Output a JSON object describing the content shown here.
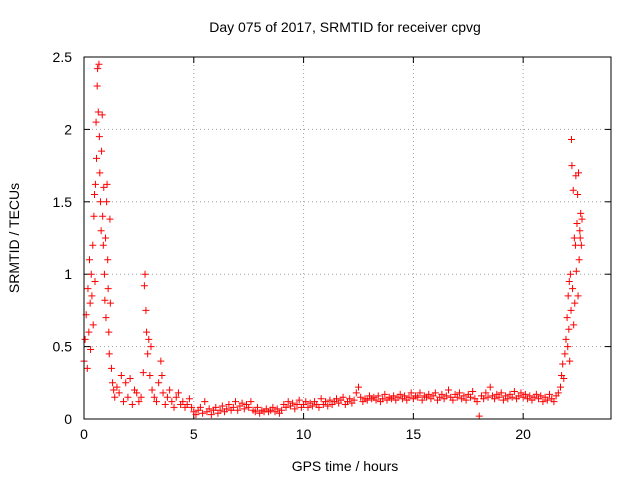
{
  "chart_data": {
    "type": "scatter",
    "title": "Day 075 of 2017, SRMTID for receiver cpvg",
    "xlabel": "GPS time / hours",
    "ylabel": "SRMTID / TECUs",
    "xlim": [
      0,
      24
    ],
    "ylim": [
      0,
      2.5
    ],
    "grid": true,
    "marker": "+",
    "series_color": "#ff0000",
    "x_ticks": [
      0,
      5,
      10,
      15,
      20
    ],
    "x_tick_labels": [
      "0",
      "5",
      "10",
      "15",
      "20"
    ],
    "y_ticks": [
      0,
      0.5,
      1,
      1.5,
      2,
      2.5
    ],
    "y_tick_labels": [
      "0",
      "0.5",
      "1",
      "1.5",
      "2",
      "2.5"
    ],
    "series": [
      {
        "name": "SRMTID",
        "points": [
          [
            0.0,
            0.4
          ],
          [
            0.05,
            0.55
          ],
          [
            0.1,
            0.72
          ],
          [
            0.15,
            0.35
          ],
          [
            0.18,
            0.9
          ],
          [
            0.22,
            0.6
          ],
          [
            0.25,
            1.1
          ],
          [
            0.28,
            0.8
          ],
          [
            0.3,
            0.48
          ],
          [
            0.33,
            1.0
          ],
          [
            0.36,
            0.85
          ],
          [
            0.4,
            1.2
          ],
          [
            0.42,
            0.65
          ],
          [
            0.45,
            1.4
          ],
          [
            0.48,
            1.55
          ],
          [
            0.5,
            0.95
          ],
          [
            0.52,
            1.62
          ],
          [
            0.55,
            2.05
          ],
          [
            0.57,
            1.8
          ],
          [
            0.6,
            2.3
          ],
          [
            0.62,
            2.42
          ],
          [
            0.65,
            2.12
          ],
          [
            0.68,
            2.45
          ],
          [
            0.7,
            1.95
          ],
          [
            0.72,
            1.7
          ],
          [
            0.75,
            1.5
          ],
          [
            0.78,
            1.3
          ],
          [
            0.8,
            1.85
          ],
          [
            0.83,
            2.1
          ],
          [
            0.85,
            1.4
          ],
          [
            0.88,
            1.2
          ],
          [
            0.9,
            1.6
          ],
          [
            0.93,
            1.0
          ],
          [
            0.95,
            0.82
          ],
          [
            0.98,
            1.25
          ],
          [
            1.0,
            0.7
          ],
          [
            1.03,
            1.5
          ],
          [
            1.05,
            1.62
          ],
          [
            1.08,
            1.1
          ],
          [
            1.1,
            0.9
          ],
          [
            1.13,
            0.6
          ],
          [
            1.15,
            0.45
          ],
          [
            1.18,
            1.38
          ],
          [
            1.2,
            0.8
          ],
          [
            1.25,
            0.35
          ],
          [
            1.3,
            0.25
          ],
          [
            1.35,
            0.2
          ],
          [
            1.4,
            0.15
          ],
          [
            1.5,
            0.22
          ],
          [
            1.6,
            0.18
          ],
          [
            1.7,
            0.3
          ],
          [
            1.8,
            0.12
          ],
          [
            1.9,
            0.25
          ],
          [
            2.0,
            0.15
          ],
          [
            2.1,
            0.28
          ],
          [
            2.2,
            0.1
          ],
          [
            2.3,
            0.2
          ],
          [
            2.4,
            0.18
          ],
          [
            2.5,
            0.12
          ],
          [
            2.6,
            0.15
          ],
          [
            2.7,
            0.32
          ],
          [
            2.75,
            0.92
          ],
          [
            2.78,
            1.0
          ],
          [
            2.82,
            0.75
          ],
          [
            2.85,
            0.6
          ],
          [
            2.9,
            0.45
          ],
          [
            2.95,
            0.55
          ],
          [
            3.0,
            0.3
          ],
          [
            3.05,
            0.5
          ],
          [
            3.1,
            0.2
          ],
          [
            3.2,
            0.15
          ],
          [
            3.3,
            0.12
          ],
          [
            3.4,
            0.25
          ],
          [
            3.5,
            0.4
          ],
          [
            3.55,
            0.3
          ],
          [
            3.6,
            0.18
          ],
          [
            3.7,
            0.1
          ],
          [
            3.8,
            0.15
          ],
          [
            3.9,
            0.2
          ],
          [
            4.0,
            0.12
          ],
          [
            4.1,
            0.08
          ],
          [
            4.2,
            0.15
          ],
          [
            4.3,
            0.18
          ],
          [
            4.4,
            0.1
          ],
          [
            4.5,
            0.12
          ],
          [
            4.6,
            0.08
          ],
          [
            4.7,
            0.1
          ],
          [
            4.8,
            0.14
          ],
          [
            4.9,
            0.08
          ],
          [
            5.0,
            0.05
          ],
          [
            5.1,
            0.03
          ],
          [
            5.2,
            0.06
          ],
          [
            5.3,
            0.08
          ],
          [
            5.4,
            0.04
          ],
          [
            5.5,
            0.12
          ],
          [
            5.6,
            0.05
          ],
          [
            5.7,
            0.07
          ],
          [
            5.8,
            0.03
          ],
          [
            5.9,
            0.06
          ],
          [
            6.0,
            0.08
          ],
          [
            6.1,
            0.04
          ],
          [
            6.2,
            0.06
          ],
          [
            6.3,
            0.09
          ],
          [
            6.4,
            0.05
          ],
          [
            6.5,
            0.07
          ],
          [
            6.6,
            0.1
          ],
          [
            6.7,
            0.06
          ],
          [
            6.8,
            0.08
          ],
          [
            6.9,
            0.12
          ],
          [
            7.0,
            0.06
          ],
          [
            7.1,
            0.09
          ],
          [
            7.2,
            0.11
          ],
          [
            7.3,
            0.07
          ],
          [
            7.4,
            0.1
          ],
          [
            7.5,
            0.08
          ],
          [
            7.6,
            0.12
          ],
          [
            7.7,
            0.06
          ],
          [
            7.8,
            0.05
          ],
          [
            7.9,
            0.08
          ],
          [
            8.0,
            0.04
          ],
          [
            8.1,
            0.06
          ],
          [
            8.2,
            0.05
          ],
          [
            8.3,
            0.07
          ],
          [
            8.4,
            0.05
          ],
          [
            8.5,
            0.06
          ],
          [
            8.6,
            0.08
          ],
          [
            8.7,
            0.05
          ],
          [
            8.8,
            0.07
          ],
          [
            8.9,
            0.04
          ],
          [
            9.0,
            0.06
          ],
          [
            9.1,
            0.1
          ],
          [
            9.2,
            0.08
          ],
          [
            9.3,
            0.12
          ],
          [
            9.4,
            0.09
          ],
          [
            9.5,
            0.11
          ],
          [
            9.6,
            0.07
          ],
          [
            9.7,
            0.1
          ],
          [
            9.8,
            0.13
          ],
          [
            9.9,
            0.08
          ],
          [
            10.0,
            0.1
          ],
          [
            10.1,
            0.12
          ],
          [
            10.2,
            0.08
          ],
          [
            10.3,
            0.11
          ],
          [
            10.4,
            0.09
          ],
          [
            10.5,
            0.12
          ],
          [
            10.6,
            0.1
          ],
          [
            10.7,
            0.08
          ],
          [
            10.8,
            0.14
          ],
          [
            10.9,
            0.1
          ],
          [
            11.0,
            0.12
          ],
          [
            11.1,
            0.09
          ],
          [
            11.2,
            0.13
          ],
          [
            11.3,
            0.1
          ],
          [
            11.4,
            0.12
          ],
          [
            11.5,
            0.14
          ],
          [
            11.6,
            0.11
          ],
          [
            11.7,
            0.13
          ],
          [
            11.8,
            0.15
          ],
          [
            11.9,
            0.1
          ],
          [
            12.0,
            0.12
          ],
          [
            12.1,
            0.14
          ],
          [
            12.2,
            0.11
          ],
          [
            12.3,
            0.13
          ],
          [
            12.4,
            0.18
          ],
          [
            12.5,
            0.22
          ],
          [
            12.6,
            0.15
          ],
          [
            12.7,
            0.12
          ],
          [
            12.8,
            0.14
          ],
          [
            12.9,
            0.13
          ],
          [
            13.0,
            0.16
          ],
          [
            13.1,
            0.14
          ],
          [
            13.2,
            0.15
          ],
          [
            13.3,
            0.13
          ],
          [
            13.4,
            0.16
          ],
          [
            13.5,
            0.12
          ],
          [
            13.6,
            0.14
          ],
          [
            13.7,
            0.17
          ],
          [
            13.8,
            0.13
          ],
          [
            13.9,
            0.15
          ],
          [
            14.0,
            0.14
          ],
          [
            14.1,
            0.16
          ],
          [
            14.2,
            0.13
          ],
          [
            14.3,
            0.15
          ],
          [
            14.4,
            0.17
          ],
          [
            14.5,
            0.14
          ],
          [
            14.6,
            0.16
          ],
          [
            14.7,
            0.13
          ],
          [
            14.8,
            0.15
          ],
          [
            14.9,
            0.18
          ],
          [
            15.0,
            0.14
          ],
          [
            15.1,
            0.16
          ],
          [
            15.2,
            0.15
          ],
          [
            15.3,
            0.18
          ],
          [
            15.4,
            0.13
          ],
          [
            15.5,
            0.16
          ],
          [
            15.6,
            0.15
          ],
          [
            15.7,
            0.17
          ],
          [
            15.8,
            0.14
          ],
          [
            15.9,
            0.16
          ],
          [
            16.0,
            0.18
          ],
          [
            16.1,
            0.13
          ],
          [
            16.2,
            0.15
          ],
          [
            16.3,
            0.17
          ],
          [
            16.4,
            0.14
          ],
          [
            16.5,
            0.16
          ],
          [
            16.6,
            0.2
          ],
          [
            16.7,
            0.15
          ],
          [
            16.8,
            0.13
          ],
          [
            16.9,
            0.17
          ],
          [
            17.0,
            0.15
          ],
          [
            17.1,
            0.18
          ],
          [
            17.2,
            0.14
          ],
          [
            17.3,
            0.16
          ],
          [
            17.4,
            0.13
          ],
          [
            17.5,
            0.17
          ],
          [
            17.6,
            0.15
          ],
          [
            17.7,
            0.19
          ],
          [
            17.8,
            0.14
          ],
          [
            17.9,
            0.12
          ],
          [
            18.0,
            0.02
          ],
          [
            18.1,
            0.16
          ],
          [
            18.2,
            0.14
          ],
          [
            18.3,
            0.18
          ],
          [
            18.4,
            0.15
          ],
          [
            18.5,
            0.22
          ],
          [
            18.6,
            0.16
          ],
          [
            18.7,
            0.14
          ],
          [
            18.8,
            0.17
          ],
          [
            18.9,
            0.15
          ],
          [
            19.0,
            0.18
          ],
          [
            19.1,
            0.13
          ],
          [
            19.2,
            0.16
          ],
          [
            19.3,
            0.14
          ],
          [
            19.4,
            0.17
          ],
          [
            19.5,
            0.15
          ],
          [
            19.6,
            0.19
          ],
          [
            19.7,
            0.14
          ],
          [
            19.8,
            0.16
          ],
          [
            19.9,
            0.18
          ],
          [
            20.0,
            0.15
          ],
          [
            20.1,
            0.17
          ],
          [
            20.2,
            0.14
          ],
          [
            20.3,
            0.16
          ],
          [
            20.4,
            0.13
          ],
          [
            20.5,
            0.15
          ],
          [
            20.6,
            0.17
          ],
          [
            20.7,
            0.14
          ],
          [
            20.8,
            0.16
          ],
          [
            20.9,
            0.12
          ],
          [
            21.0,
            0.15
          ],
          [
            21.1,
            0.13
          ],
          [
            21.2,
            0.17
          ],
          [
            21.3,
            0.14
          ],
          [
            21.4,
            0.12
          ],
          [
            21.5,
            0.16
          ],
          [
            21.6,
            0.18
          ],
          [
            21.7,
            0.22
          ],
          [
            21.75,
            0.3
          ],
          [
            21.8,
            0.38
          ],
          [
            21.85,
            0.28
          ],
          [
            21.9,
            0.45
          ],
          [
            21.95,
            0.55
          ],
          [
            22.0,
            0.7
          ],
          [
            22.03,
            0.5
          ],
          [
            22.05,
            0.85
          ],
          [
            22.08,
            0.62
          ],
          [
            22.1,
            0.95
          ],
          [
            22.12,
            0.4
          ],
          [
            22.15,
            1.0
          ],
          [
            22.18,
            0.75
          ],
          [
            22.2,
            1.93
          ],
          [
            22.22,
            1.75
          ],
          [
            22.25,
            0.9
          ],
          [
            22.28,
            1.58
          ],
          [
            22.3,
            0.65
          ],
          [
            22.33,
            1.25
          ],
          [
            22.35,
            0.8
          ],
          [
            22.38,
            1.2
          ],
          [
            22.4,
            1.68
          ],
          [
            22.42,
            1.02
          ],
          [
            22.45,
            1.35
          ],
          [
            22.48,
            1.55
          ],
          [
            22.5,
            0.85
          ],
          [
            22.52,
            1.7
          ],
          [
            22.55,
            1.1
          ],
          [
            22.58,
            1.3
          ],
          [
            22.6,
            1.25
          ],
          [
            22.62,
            1.42
          ],
          [
            22.65,
            1.2
          ],
          [
            22.68,
            1.38
          ]
        ]
      }
    ]
  }
}
